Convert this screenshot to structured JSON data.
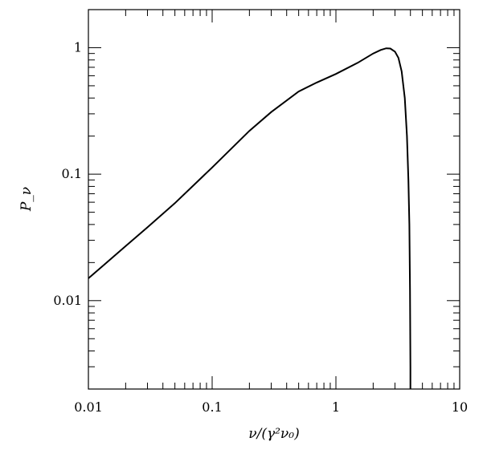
{
  "chart_data": {
    "type": "line",
    "title": "",
    "xlabel": "ν/(γ²ν₀)",
    "ylabel": "P_ν",
    "xscale": "log",
    "yscale": "log",
    "xlim": [
      0.01,
      10
    ],
    "ylim": [
      0.002,
      2
    ],
    "x_tick_labels": [
      "0.01",
      "0.1",
      "1",
      "10"
    ],
    "y_tick_labels": [
      "0.01",
      "0.1",
      "1"
    ],
    "grid": false,
    "legend": "none",
    "line_color": "#000000",
    "series": [
      {
        "x": [
          0.01,
          0.02,
          0.03,
          0.05,
          0.1,
          0.2,
          0.3,
          0.5,
          0.7,
          1.0,
          1.5,
          2.0,
          2.3,
          2.55,
          2.75,
          3.0,
          3.2,
          3.4,
          3.6,
          3.75,
          3.85,
          3.92,
          3.97,
          4.0,
          4.0
        ],
        "y": [
          0.015,
          0.027,
          0.038,
          0.059,
          0.113,
          0.22,
          0.31,
          0.45,
          0.53,
          0.62,
          0.76,
          0.9,
          0.96,
          0.99,
          0.985,
          0.93,
          0.83,
          0.65,
          0.4,
          0.2,
          0.09,
          0.04,
          0.012,
          0.003,
          0.002
        ]
      }
    ]
  }
}
